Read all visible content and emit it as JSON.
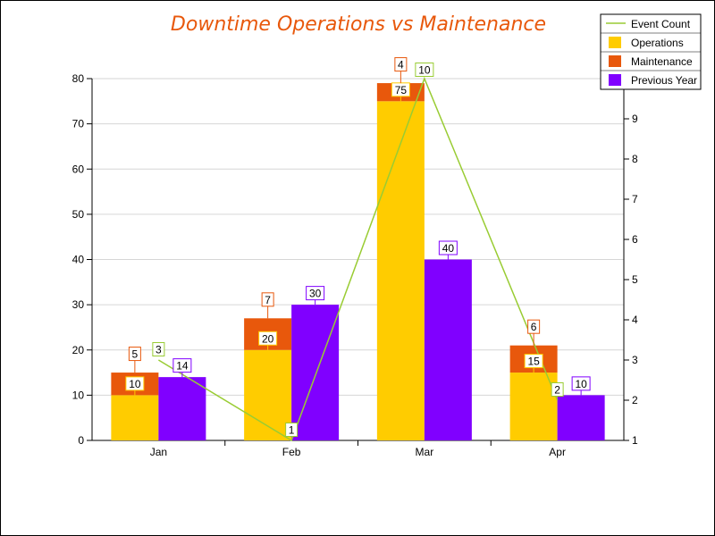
{
  "chart_data": {
    "type": "bar",
    "title": "Downtime Operations vs Maintenance",
    "title_color": "#E8580C",
    "categories": [
      "Jan",
      "Feb",
      "Mar",
      "Apr"
    ],
    "ylim": [
      0,
      80
    ],
    "y_ticks": [
      0,
      10,
      20,
      30,
      40,
      50,
      60,
      70,
      80
    ],
    "y2lim": [
      1,
      10
    ],
    "y2_ticks": [
      1,
      2,
      3,
      4,
      5,
      6,
      7,
      8,
      9
    ],
    "grid": true,
    "legend_position": "top-right",
    "stacked_series": [
      {
        "name": "Operations",
        "values": [
          10,
          20,
          75,
          15
        ],
        "color": "#FFCC00",
        "label_border": "#FFCC00"
      },
      {
        "name": "Maintenance",
        "values": [
          5,
          7,
          4,
          6
        ],
        "color": "#E8580C",
        "label_border": "#E8580C"
      }
    ],
    "side_series": {
      "name": "Previous Year",
      "values": [
        14,
        30,
        40,
        10
      ],
      "color": "#8000FF",
      "label_border": "#8000FF"
    },
    "line_series": {
      "name": "Event Count",
      "values": [
        3,
        1,
        10,
        2
      ],
      "color": "#99CC33",
      "axis": "secondary"
    }
  }
}
